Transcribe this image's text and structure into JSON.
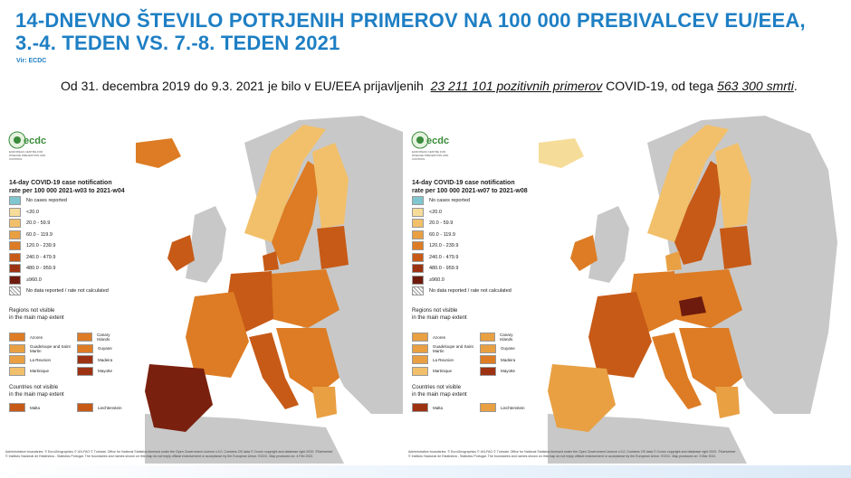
{
  "title_line1": "14-DNEVNO ŠTEVILO POTRJENIH PRIMEROV NA 100 000 PREBIVALCEV EU/EEA,",
  "title_line2": "3.-4. TEDEN VS. 7.-8. TEDEN 2021",
  "source": "Vir: ECDC",
  "stat_prefix": "Od 31. decembra 2019 do 9.3. 2021 je bilo v EU/EEA prijavljenih",
  "stat_cases": "23 211 101 pozitivnih primerov",
  "stat_middle": "COVID-19, od tega",
  "stat_deaths": "563 300  smrti",
  "stat_end": ".",
  "colors": {
    "title": "#1e7fc4",
    "no_cases": "#7fc6d0",
    "c1": "#f6dc99",
    "c2": "#f2c06b",
    "c3": "#e9a043",
    "c4": "#dd7c24",
    "c5": "#c75a17",
    "c6": "#9d3212",
    "c7": "#6e1b0d",
    "not_included": "#c8c8c8",
    "sea": "#ffffff"
  },
  "legend_items": [
    {
      "label": "No cases reported",
      "color": "#7fc6d0"
    },
    {
      "label": "<20.0",
      "color": "#f6dc99"
    },
    {
      "label": "20.0 - 59.9",
      "color": "#f2c06b"
    },
    {
      "label": "60.0 - 119.9",
      "color": "#e9a043"
    },
    {
      "label": "120.0 - 239.9",
      "color": "#dd7c24"
    },
    {
      "label": "240.0 - 479.9",
      "color": "#c75a17"
    },
    {
      "label": "480.0 - 959.9",
      "color": "#9d3212"
    },
    {
      "label": "≥960.0",
      "color": "#6e1b0d"
    },
    {
      "label": "No data reported / rate not calculated",
      "color": "hatch"
    }
  ],
  "regions_title": "Regions not visible\nin the main map extent",
  "countries_title": "Countries not visible\nin the main map extent",
  "ecdc_logo": "ecdc",
  "ecdc_sub": "EUROPEAN CENTRE FOR DISEASE PREVENTION AND CONTROL",
  "maps": [
    {
      "legend_title": "14-day COVID-19 case notification\nrate per 100 000 2021-w03 to 2021-w04",
      "regions": [
        {
          "label": "Azores",
          "color": "#dd7c24"
        },
        {
          "label": "Canary Islands",
          "color": "#dd7c24"
        },
        {
          "label": "Guadeloupe and Saint Martin",
          "color": "#e9a043"
        },
        {
          "label": "Guyane",
          "color": "#dd7c24"
        },
        {
          "label": "La Reunion",
          "color": "#e9a043"
        },
        {
          "label": "Madeira",
          "color": "#9d3212"
        },
        {
          "label": "Martinique",
          "color": "#f2c06b"
        },
        {
          "label": "Mayotte",
          "color": "#9d3212"
        }
      ],
      "countries": [
        {
          "label": "Malta",
          "color": "#c75a17"
        },
        {
          "label": "Liechtenstein",
          "color": "#c75a17"
        }
      ],
      "footnote": "Administrative boundaries: © EuroGeographics © UN-FAO © Turkstat. Office for National Statistics licensed under the Open Government Licence v.3.0. Contains OS data © Crown copyright and database right 2020. ©Kartverket\n© Instituto Nacional de Estatística - Statistics Portugal. The boundaries and names shown on this map do not imply official endorsement or acceptance by the European Union. ECDC. Map produced on: 4 Feb 2021"
    },
    {
      "legend_title": "14-day COVID-19 case notification\nrate per 100 000 2021-w07 to 2021-w08",
      "regions": [
        {
          "label": "Azores",
          "color": "#e9a043"
        },
        {
          "label": "Canary Islands",
          "color": "#e9a043"
        },
        {
          "label": "Guadeloupe and Saint Martin",
          "color": "#e9a043"
        },
        {
          "label": "Guyane",
          "color": "#e9a043"
        },
        {
          "label": "La Reunion",
          "color": "#e9a043"
        },
        {
          "label": "Madeira",
          "color": "#dd7c24"
        },
        {
          "label": "Martinique",
          "color": "#f2c06b"
        },
        {
          "label": "Mayotte",
          "color": "#9d3212"
        }
      ],
      "countries": [
        {
          "label": "Malta",
          "color": "#9d3212"
        },
        {
          "label": "Liechtenstein",
          "color": "#e9a043"
        }
      ],
      "footnote": "Administrative boundaries: © EuroGeographics © UN-FAO © Turkstat. Office for National Statistics licensed under the Open Government Licence v.3.0. Contains OS data © Crown copyright and database right 2020. ©Kartverket\n© Instituto Nacional de Estatística - Statistics Portugal. The boundaries and names shown on this map do not imply official endorsement or acceptance by the European Union. ECDC. Map produced on: 3 Mar 2021"
    }
  ]
}
